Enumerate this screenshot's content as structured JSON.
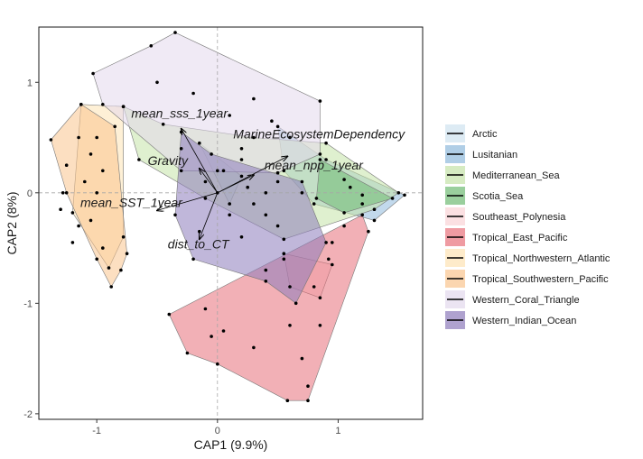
{
  "chart_data": {
    "type": "scatter",
    "title": "",
    "xlabel": "CAP1 (9.9%)",
    "ylabel": "CAP2 (8%)",
    "xlim": [
      -1.48,
      1.7
    ],
    "ylim": [
      -2.05,
      1.5
    ],
    "xticks": [
      -1,
      0,
      1
    ],
    "yticks": [
      -2,
      -1,
      0,
      1
    ],
    "grid": false,
    "reference_lines": {
      "x": 0,
      "y": 0
    },
    "legend_position": "right",
    "series": [
      {
        "name": "Arctic",
        "color": "#cfe3f0",
        "hull": [
          [
            -0.15,
            0.45
          ],
          [
            0.2,
            0.15
          ],
          [
            0.1,
            -0.1
          ]
        ],
        "points": [
          [
            -0.15,
            0.45
          ],
          [
            0.2,
            0.15
          ],
          [
            0.1,
            -0.1
          ]
        ]
      },
      {
        "name": "Lusitanian",
        "color": "#8fb9dc",
        "hull": [
          [
            0.5,
            0.6
          ],
          [
            0.9,
            0.3
          ],
          [
            1.55,
            -0.02
          ],
          [
            1.3,
            -0.25
          ],
          [
            0.8,
            -0.1
          ],
          [
            0.55,
            0.2
          ]
        ],
        "points": [
          [
            0.5,
            0.6
          ],
          [
            0.9,
            0.3
          ],
          [
            1.55,
            -0.02
          ],
          [
            1.3,
            -0.25
          ],
          [
            0.8,
            -0.1
          ],
          [
            0.55,
            0.2
          ],
          [
            1.1,
            0.05
          ]
        ]
      },
      {
        "name": "Mediterranean_Sea",
        "color": "#c4e3a8",
        "hull": [
          [
            -0.78,
            0.78
          ],
          [
            -0.45,
            0.62
          ],
          [
            0.3,
            0.5
          ],
          [
            0.9,
            0.45
          ],
          [
            1.5,
            0.0
          ],
          [
            1.3,
            -0.15
          ],
          [
            0.55,
            -0.42
          ],
          [
            -0.1,
            -0.05
          ],
          [
            -0.65,
            0.3
          ]
        ],
        "points": [
          [
            -0.78,
            0.78
          ],
          [
            -0.45,
            0.62
          ],
          [
            0.3,
            0.5
          ],
          [
            0.9,
            0.45
          ],
          [
            1.5,
            0.0
          ],
          [
            1.3,
            -0.15
          ],
          [
            0.55,
            -0.42
          ],
          [
            -0.1,
            -0.05
          ],
          [
            -0.65,
            0.3
          ],
          [
            0.2,
            0.3
          ],
          [
            0.5,
            0.1
          ],
          [
            0.0,
            0.2
          ],
          [
            1.2,
            -0.1
          ],
          [
            0.7,
            0.0
          ],
          [
            -0.3,
            0.4
          ],
          [
            0.4,
            -0.2
          ]
        ]
      },
      {
        "name": "Scotia_Sea",
        "color": "#6fba74",
        "hull": [
          [
            0.85,
            0.3
          ],
          [
            1.45,
            -0.05
          ],
          [
            1.05,
            -0.18
          ],
          [
            0.82,
            -0.05
          ]
        ],
        "points": [
          [
            0.85,
            0.3
          ],
          [
            1.45,
            -0.05
          ],
          [
            1.05,
            -0.18
          ],
          [
            0.82,
            -0.05
          ],
          [
            1.05,
            0.12
          ],
          [
            1.2,
            -0.02
          ]
        ]
      },
      {
        "name": "Southeast_Polynesia",
        "color": "#f9d3d6",
        "hull": [
          [
            0.55,
            -0.55
          ],
          [
            0.95,
            -0.65
          ],
          [
            0.85,
            -0.95
          ],
          [
            0.6,
            -0.85
          ]
        ],
        "points": [
          [
            0.55,
            -0.55
          ],
          [
            0.95,
            -0.65
          ],
          [
            0.85,
            -0.95
          ],
          [
            0.6,
            -0.85
          ]
        ]
      },
      {
        "name": "Tropical_East_Pacific",
        "color": "#e8707a",
        "hull": [
          [
            -0.4,
            -1.1
          ],
          [
            1.2,
            -0.2
          ],
          [
            1.25,
            -0.35
          ],
          [
            0.75,
            -1.88
          ],
          [
            0.58,
            -1.88
          ],
          [
            0.0,
            -1.55
          ],
          [
            -0.25,
            -1.45
          ]
        ],
        "points": [
          [
            -0.4,
            -1.1
          ],
          [
            1.2,
            -0.2
          ],
          [
            1.25,
            -0.35
          ],
          [
            0.75,
            -1.88
          ],
          [
            0.58,
            -1.88
          ],
          [
            0.0,
            -1.55
          ],
          [
            -0.25,
            -1.45
          ],
          [
            0.8,
            -0.85
          ],
          [
            0.92,
            -0.6
          ],
          [
            0.7,
            -1.5
          ],
          [
            0.85,
            -1.2
          ],
          [
            0.95,
            -0.45
          ],
          [
            1.05,
            -0.3
          ],
          [
            0.4,
            -0.7
          ],
          [
            0.6,
            -1.2
          ],
          [
            -0.1,
            -1.05
          ],
          [
            -0.05,
            -1.3
          ],
          [
            0.05,
            -1.25
          ],
          [
            0.3,
            -1.4
          ],
          [
            0.75,
            -1.75
          ]
        ]
      },
      {
        "name": "Tropical_Northwestern_Atlantic",
        "color": "#fde3b4",
        "hull": [
          [
            -1.13,
            0.8
          ],
          [
            -0.78,
            0.78
          ],
          [
            -0.78,
            -0.4
          ],
          [
            -0.9,
            -0.68
          ],
          [
            -1.2,
            -0.18
          ]
        ],
        "points": [
          [
            -1.13,
            0.8
          ],
          [
            -0.78,
            0.78
          ],
          [
            -0.78,
            -0.4
          ],
          [
            -0.9,
            -0.68
          ],
          [
            -1.2,
            -0.18
          ],
          [
            -0.95,
            0.2
          ],
          [
            -1.0,
            0.0
          ]
        ]
      },
      {
        "name": "Tropical_Southwestern_Pacific",
        "color": "#f9c48e",
        "hull": [
          [
            -1.13,
            0.8
          ],
          [
            -1.38,
            0.48
          ],
          [
            -1.25,
            0.0
          ],
          [
            -1.0,
            -0.6
          ],
          [
            -0.88,
            -0.85
          ],
          [
            -0.8,
            -0.7
          ],
          [
            -0.75,
            -0.55
          ],
          [
            -0.85,
            0.6
          ]
        ],
        "points": [
          [
            -1.13,
            0.8
          ],
          [
            -1.38,
            0.48
          ],
          [
            -1.25,
            0.0
          ],
          [
            -1.0,
            -0.6
          ],
          [
            -0.88,
            -0.85
          ],
          [
            -0.8,
            -0.7
          ],
          [
            -0.75,
            -0.55
          ],
          [
            -0.85,
            0.6
          ],
          [
            -1.25,
            0.25
          ],
          [
            -1.15,
            0.5
          ],
          [
            -1.3,
            -0.15
          ],
          [
            -1.05,
            -0.25
          ],
          [
            -1.2,
            -0.45
          ],
          [
            -1.1,
            0.1
          ],
          [
            -1.05,
            0.35
          ],
          [
            -1.28,
            0.0
          ],
          [
            -1.0,
            0.5
          ],
          [
            -0.95,
            -0.5
          ],
          [
            -1.15,
            -0.3
          ]
        ]
      },
      {
        "name": "Western_Coral_Triangle",
        "color": "#e3d8ec",
        "hull": [
          [
            -1.03,
            1.08
          ],
          [
            -0.55,
            1.33
          ],
          [
            -0.35,
            1.45
          ],
          [
            0.85,
            0.83
          ],
          [
            0.85,
            0.35
          ],
          [
            0.5,
            0.18
          ],
          [
            -0.3,
            0.2
          ],
          [
            -0.95,
            0.8
          ]
        ],
        "points": [
          [
            -1.03,
            1.08
          ],
          [
            -0.55,
            1.33
          ],
          [
            -0.35,
            1.45
          ],
          [
            0.85,
            0.83
          ],
          [
            0.85,
            0.35
          ],
          [
            0.5,
            0.18
          ],
          [
            -0.3,
            0.2
          ],
          [
            -0.95,
            0.8
          ],
          [
            0.3,
            0.85
          ],
          [
            0.1,
            0.7
          ],
          [
            0.6,
            0.5
          ],
          [
            -0.5,
            1.0
          ],
          [
            -0.2,
            0.9
          ],
          [
            0.2,
            0.4
          ],
          [
            0.45,
            0.65
          ]
        ]
      },
      {
        "name": "Western_Indian_Ocean",
        "color": "#8d7bbb",
        "hull": [
          [
            -0.3,
            0.55
          ],
          [
            -0.05,
            0.35
          ],
          [
            0.7,
            0.1
          ],
          [
            0.9,
            -0.45
          ],
          [
            0.65,
            -1.0
          ],
          [
            0.4,
            -0.8
          ],
          [
            -0.2,
            -0.6
          ],
          [
            -0.35,
            -0.2
          ]
        ],
        "points": [
          [
            -0.3,
            0.55
          ],
          [
            -0.05,
            0.35
          ],
          [
            0.7,
            0.1
          ],
          [
            0.9,
            -0.45
          ],
          [
            0.65,
            -1.0
          ],
          [
            0.4,
            -0.8
          ],
          [
            -0.2,
            -0.6
          ],
          [
            -0.35,
            -0.2
          ],
          [
            0.0,
            0.0
          ],
          [
            0.1,
            -0.2
          ],
          [
            0.3,
            -0.1
          ],
          [
            0.5,
            -0.3
          ],
          [
            0.2,
            -0.4
          ],
          [
            -0.1,
            0.1
          ],
          [
            0.4,
            0.0
          ],
          [
            0.05,
            0.2
          ],
          [
            0.55,
            -0.6
          ],
          [
            -0.15,
            -0.35
          ],
          [
            0.25,
            0.05
          ]
        ]
      }
    ],
    "arrows": [
      {
        "label": "mean_sss_1year",
        "x": -0.3,
        "y": 0.58
      },
      {
        "label": "MarineEcosystemDependency",
        "x": 0.58,
        "y": 0.33
      },
      {
        "label": "Gravity",
        "x": -0.15,
        "y": 0.22
      },
      {
        "label": "mean_npp_1year",
        "x": 0.3,
        "y": 0.16
      },
      {
        "label": "mean_SST_1year",
        "x": -0.5,
        "y": -0.16
      },
      {
        "label": "dist_to_CT",
        "x": -0.15,
        "y": -0.42
      }
    ]
  }
}
